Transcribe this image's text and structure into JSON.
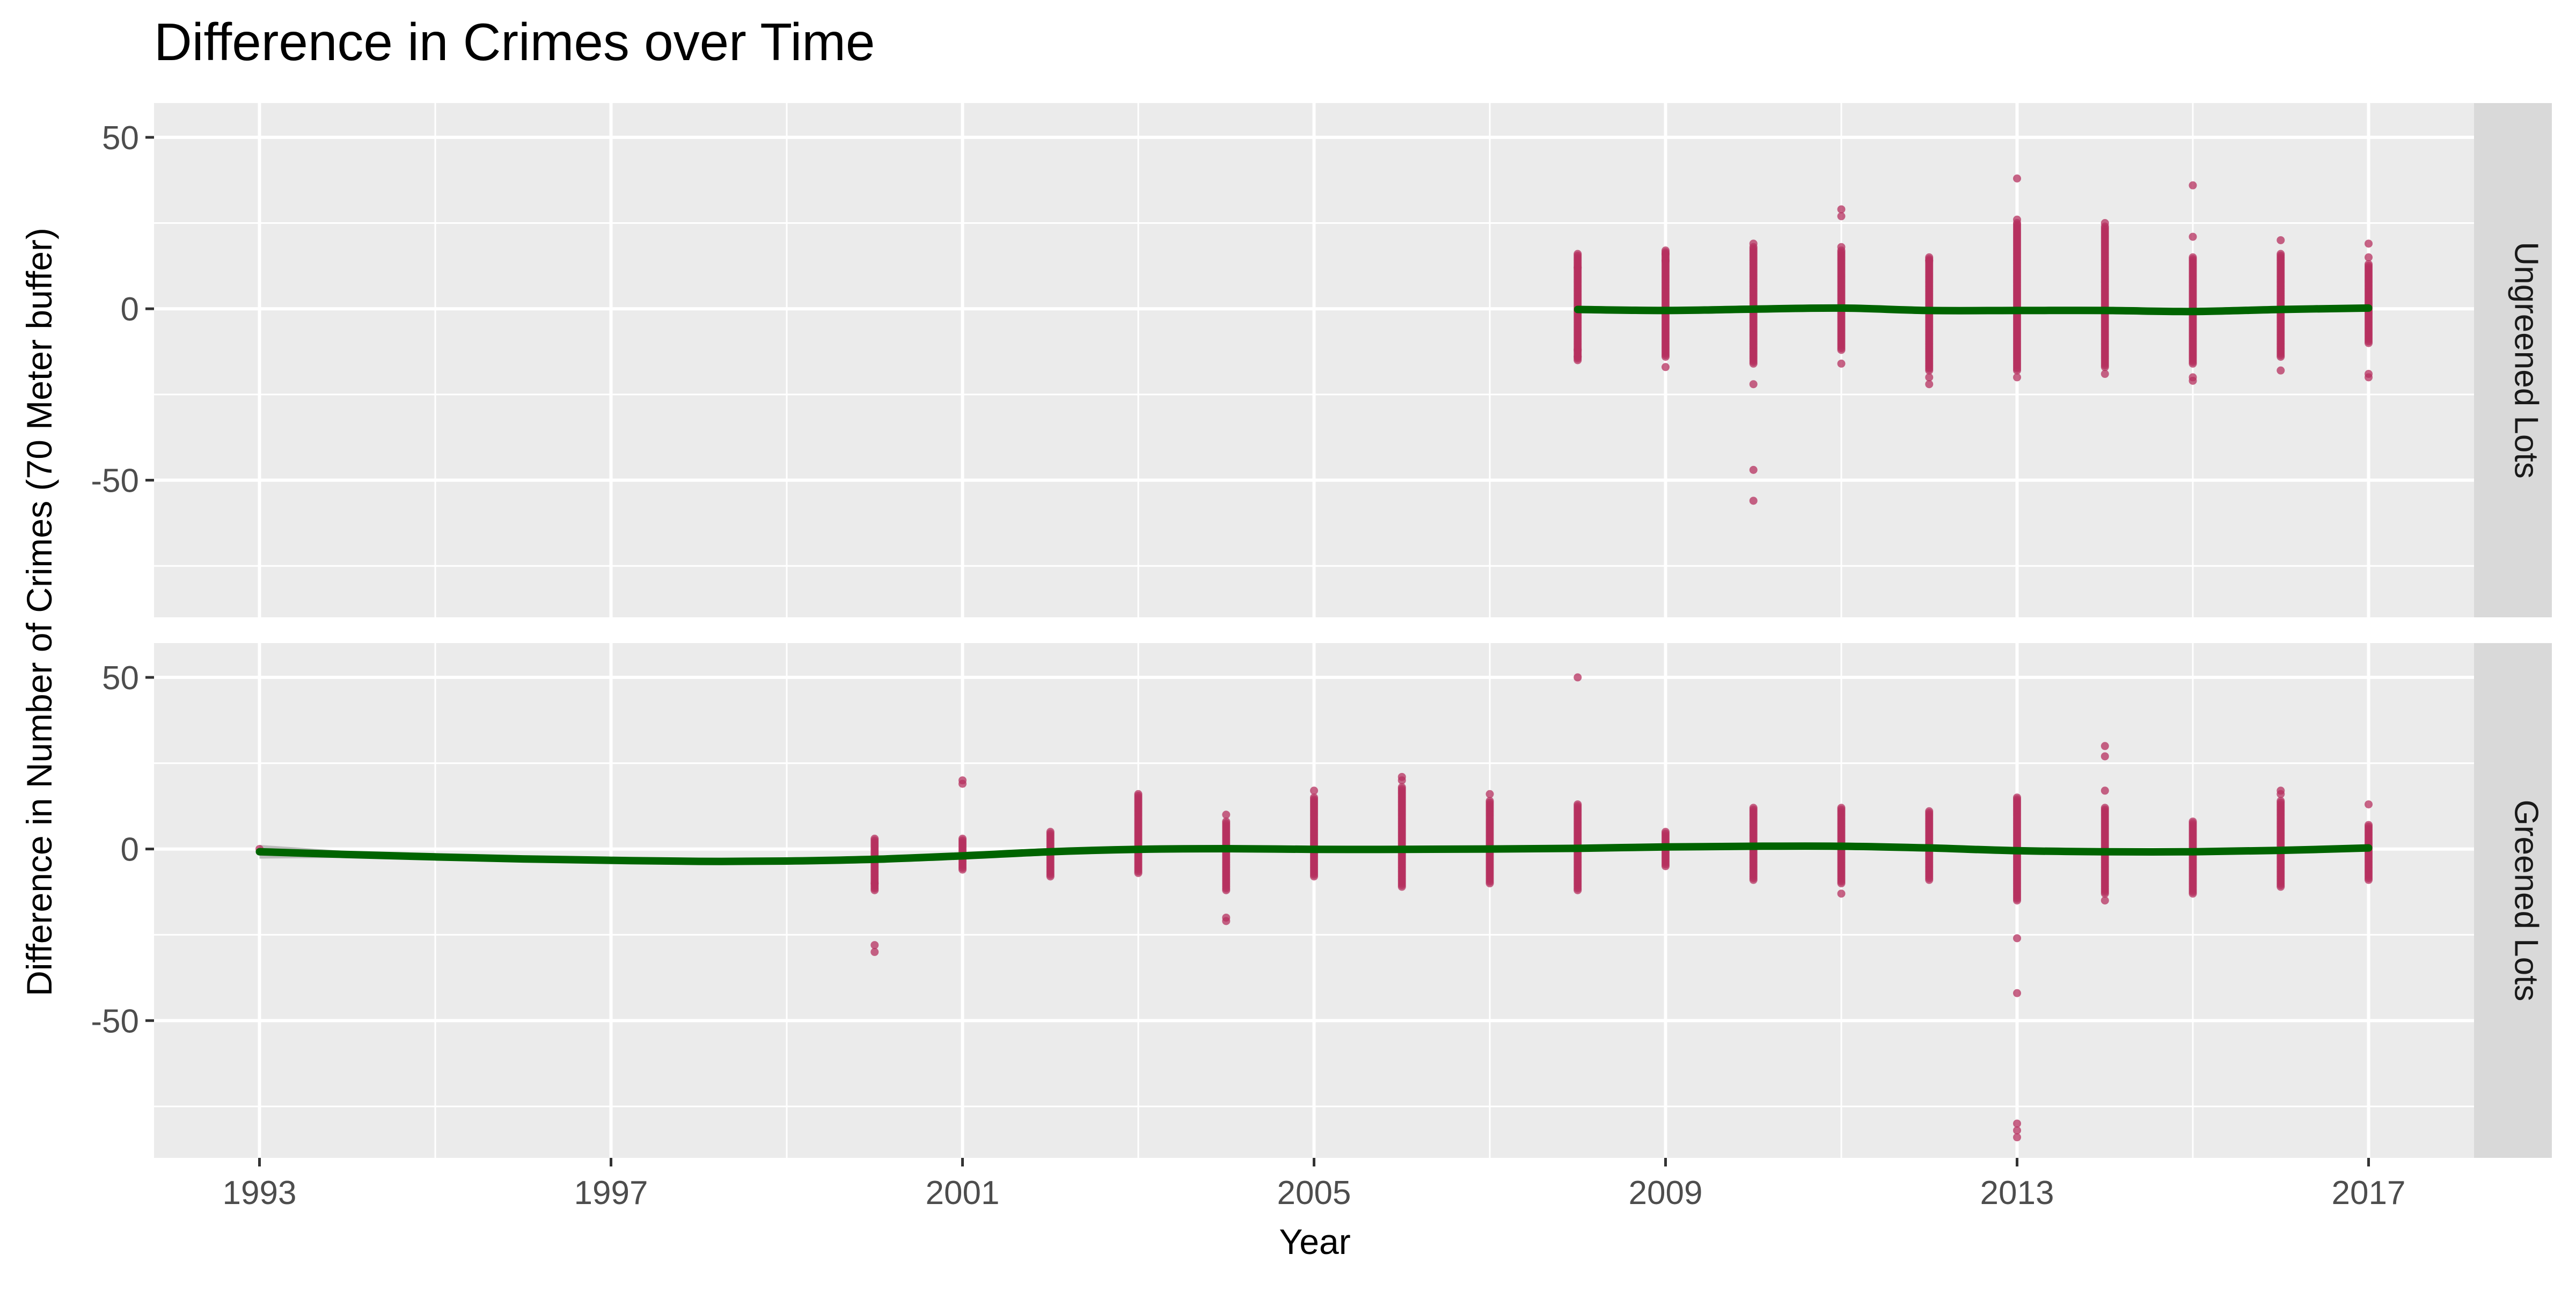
{
  "chart_data": {
    "type": "scatter",
    "title": "Difference in Crimes over Time",
    "xlabel": "Year",
    "ylabel": "Difference in Number of Crimes (70 Meter buffer)",
    "x_ticks": [
      1993,
      1997,
      2001,
      2005,
      2009,
      2013,
      2017
    ],
    "x_range": [
      1991.8,
      2018.2
    ],
    "y_ticks": [
      -50,
      0,
      50
    ],
    "y_range": [
      -90,
      60
    ],
    "grid": true,
    "colors": {
      "points": "#b5305f",
      "smooth": "#006400",
      "band": "#b3b3b3",
      "panel_bg": "#ebebeb",
      "strip_bg": "#d9d9d9"
    },
    "panels": [
      {
        "strip": "Ungreened Lots",
        "columns": [
          {
            "x": 2008,
            "min": -15,
            "max": 16,
            "extra": [
              -14,
              -12,
              12
            ]
          },
          {
            "x": 2009,
            "min": -14,
            "max": 17,
            "extra": [
              -17,
              16,
              14
            ]
          },
          {
            "x": 2010,
            "min": -16,
            "max": 18,
            "extra": [
              -47,
              -56,
              -22,
              19
            ]
          },
          {
            "x": 2011,
            "min": -12,
            "max": 17,
            "extra": [
              -16,
              27,
              29,
              18
            ]
          },
          {
            "x": 2012,
            "min": -18,
            "max": 15,
            "extra": [
              -20,
              -22,
              14
            ]
          },
          {
            "x": 2013,
            "min": -18,
            "max": 25,
            "extra": [
              -20,
              26,
              38
            ]
          },
          {
            "x": 2014,
            "min": -17,
            "max": 24,
            "extra": [
              -19,
              25
            ]
          },
          {
            "x": 2015,
            "min": -16,
            "max": 15,
            "extra": [
              -21,
              -20,
              21,
              36
            ]
          },
          {
            "x": 2016,
            "min": -14,
            "max": 16,
            "extra": [
              -18,
              20
            ]
          },
          {
            "x": 2017,
            "min": -10,
            "max": 13,
            "extra": [
              -20,
              -19,
              15,
              19
            ]
          }
        ],
        "smooth": [
          [
            2008,
            -0.2
          ],
          [
            2009,
            -0.5
          ],
          [
            2010,
            -0.1
          ],
          [
            2011,
            0.2
          ],
          [
            2012,
            -0.5
          ],
          [
            2013,
            -0.5
          ],
          [
            2014,
            -0.5
          ],
          [
            2015,
            -0.8
          ],
          [
            2016,
            -0.2
          ],
          [
            2017,
            0.2
          ]
        ]
      },
      {
        "strip": "Greened Lots",
        "columns": [
          {
            "x": 1993,
            "min": 0,
            "max": 0,
            "extra": []
          },
          {
            "x": 2000,
            "min": -12,
            "max": 3,
            "extra": [
              -28,
              -30,
              -10
            ]
          },
          {
            "x": 2001,
            "min": -6,
            "max": 3,
            "extra": [
              19,
              20
            ]
          },
          {
            "x": 2002,
            "min": -8,
            "max": 5,
            "extra": []
          },
          {
            "x": 2003,
            "min": -7,
            "max": 16,
            "extra": []
          },
          {
            "x": 2004,
            "min": -12,
            "max": 8,
            "extra": [
              -20,
              -21,
              10
            ]
          },
          {
            "x": 2005,
            "min": -8,
            "max": 15,
            "extra": [
              17
            ]
          },
          {
            "x": 2006,
            "min": -11,
            "max": 18,
            "extra": [
              20,
              21
            ]
          },
          {
            "x": 2007,
            "min": -10,
            "max": 14,
            "extra": [
              16
            ]
          },
          {
            "x": 2008,
            "min": -12,
            "max": 13,
            "extra": [
              50
            ]
          },
          {
            "x": 2009,
            "min": -5,
            "max": 5,
            "extra": []
          },
          {
            "x": 2010,
            "min": -9,
            "max": 12,
            "extra": []
          },
          {
            "x": 2011,
            "min": -10,
            "max": 12,
            "extra": [
              -13
            ]
          },
          {
            "x": 2012,
            "min": -9,
            "max": 11,
            "extra": []
          },
          {
            "x": 2013,
            "min": -15,
            "max": 15,
            "extra": [
              -26,
              -42,
              -80,
              -82,
              -84
            ]
          },
          {
            "x": 2014,
            "min": -13,
            "max": 12,
            "extra": [
              -15,
              17,
              27,
              30
            ]
          },
          {
            "x": 2015,
            "min": -13,
            "max": 8,
            "extra": []
          },
          {
            "x": 2016,
            "min": -11,
            "max": 14,
            "extra": [
              16,
              17
            ]
          },
          {
            "x": 2017,
            "min": -9,
            "max": 7,
            "extra": [
              13
            ]
          }
        ],
        "smooth": [
          [
            1993,
            -0.8
          ],
          [
            1994,
            -1.6
          ],
          [
            1995,
            -2.3
          ],
          [
            1996,
            -2.9
          ],
          [
            1997,
            -3.3
          ],
          [
            1998,
            -3.6
          ],
          [
            1999,
            -3.5
          ],
          [
            2000,
            -3.0
          ],
          [
            2001,
            -2.0
          ],
          [
            2002,
            -0.8
          ],
          [
            2003,
            -0.1
          ],
          [
            2004,
            0.1
          ],
          [
            2005,
            -0.1
          ],
          [
            2006,
            -0.1
          ],
          [
            2007,
            0.0
          ],
          [
            2008,
            0.2
          ],
          [
            2009,
            0.6
          ],
          [
            2010,
            0.8
          ],
          [
            2011,
            0.8
          ],
          [
            2012,
            0.3
          ],
          [
            2013,
            -0.5
          ],
          [
            2014,
            -0.8
          ],
          [
            2015,
            -0.8
          ],
          [
            2016,
            -0.4
          ],
          [
            2017,
            0.3
          ]
        ],
        "band": [
          [
            1993,
            2.0
          ],
          [
            1994,
            1.0
          ],
          [
            1995,
            0.8
          ],
          [
            1996,
            0.7
          ],
          [
            1997,
            0.7
          ],
          [
            1998,
            0.7
          ],
          [
            1999,
            0.7
          ],
          [
            2000,
            0.6
          ],
          [
            2001,
            0.5
          ],
          [
            2002,
            0.4
          ],
          [
            2017,
            0.4
          ]
        ]
      }
    ]
  }
}
